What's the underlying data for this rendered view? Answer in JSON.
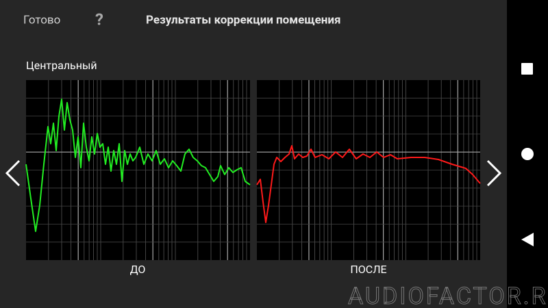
{
  "header": {
    "done": "Готово",
    "help": "?",
    "title": "Результаты коррекции помещения"
  },
  "channel": "Центральный",
  "plots": [
    {
      "label": "ДО"
    },
    {
      "label": "ПОСЛЕ"
    }
  ],
  "watermark": "AUDIOFACTOR.RU"
}
